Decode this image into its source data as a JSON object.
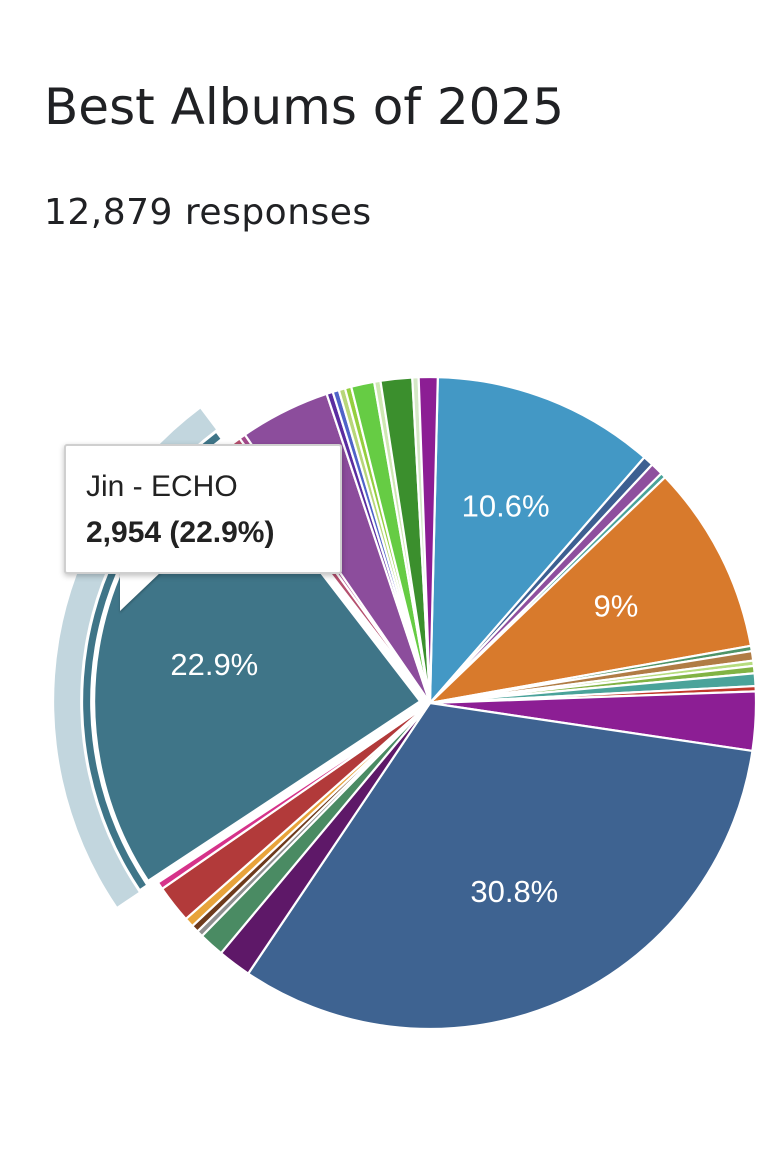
{
  "header": {
    "title": "Best Albums of 2025",
    "responses": "12,879 responses"
  },
  "tooltip": {
    "name": "Jin - ECHO",
    "value": "2,954 (22.9%)"
  },
  "chart_data": {
    "type": "pie",
    "title": "Best Albums of 2025",
    "total_responses": 12879,
    "highlighted": "Jin - ECHO",
    "slices": [
      {
        "value": 10.6,
        "color": "#4398c5",
        "label": "10.6%"
      },
      {
        "value": 0.5,
        "color": "#3d5f91"
      },
      {
        "value": 0.6,
        "color": "#8e4f9e"
      },
      {
        "value": 0.25,
        "color": "#4aa39a"
      },
      {
        "value": 9.0,
        "color": "#d87a2c",
        "label": "9%"
      },
      {
        "value": 0.25,
        "color": "#4e9468"
      },
      {
        "value": 0.45,
        "color": "#b07c45"
      },
      {
        "value": 0.25,
        "color": "#b6dc7e"
      },
      {
        "value": 0.35,
        "color": "#81b344"
      },
      {
        "value": 0.6,
        "color": "#4aa39a"
      },
      {
        "value": 0.25,
        "color": "#c0392b"
      },
      {
        "value": 2.8,
        "color": "#8c1e94"
      },
      {
        "value": 30.8,
        "color": "#3e6391",
        "label": "30.8%"
      },
      {
        "value": 1.6,
        "color": "#5e1868"
      },
      {
        "value": 1.2,
        "color": "#4a8b63"
      },
      {
        "value": 0.3,
        "color": "#8f8f8f"
      },
      {
        "value": 0.35,
        "color": "#6e3a1c"
      },
      {
        "value": 0.45,
        "color": "#e8a33a"
      },
      {
        "value": 1.8,
        "color": "#b23a3a"
      },
      {
        "value": 0.35,
        "color": "#d6338a"
      },
      {
        "value": 22.9,
        "color": "#3f7588",
        "label": "22.9%",
        "name": "Jin - ECHO",
        "count": 2954
      },
      {
        "value": 0.5,
        "color": "#b5506f"
      },
      {
        "value": 0.3,
        "color": "#a44a8c"
      },
      {
        "value": 4.3,
        "color": "#8c4d9c"
      },
      {
        "value": 0.3,
        "color": "#5a2da0"
      },
      {
        "value": 0.3,
        "color": "#4f63c8"
      },
      {
        "value": 0.3,
        "color": "#b8d67a"
      },
      {
        "value": 0.3,
        "color": "#94cf3f"
      },
      {
        "value": 1.1,
        "color": "#66cc44"
      },
      {
        "value": 0.3,
        "color": "#cfe8b3"
      },
      {
        "value": 1.5,
        "color": "#3b8f2d"
      },
      {
        "value": 0.3,
        "color": "#d5e8c7"
      },
      {
        "value": 0.9,
        "color": "#8c1e94"
      }
    ]
  }
}
